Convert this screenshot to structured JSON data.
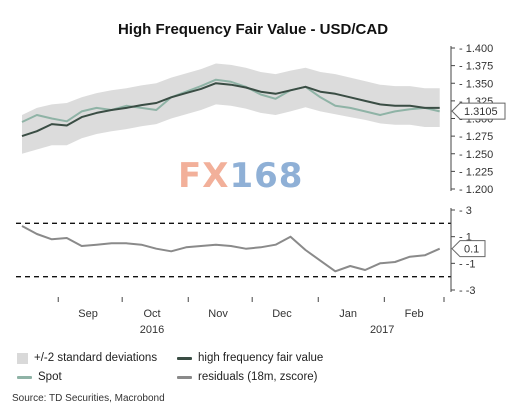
{
  "title": "High Frequency Fair Value - USD/CAD",
  "source": "Source: TD Securities, Macrobond",
  "watermark": {
    "fx": "FX",
    "num": "168"
  },
  "colors": {
    "band": "#dcdcdc",
    "fair_value": "#3a4d44",
    "spot": "#8fb3a6",
    "residuals": "#8a8a8a",
    "callout_border": "#666666"
  },
  "legend": [
    {
      "label": "+/-2 standard deviations",
      "swatch": "band"
    },
    {
      "label": "high frequency fair value",
      "swatch": "fair_value"
    },
    {
      "label": "Spot",
      "swatch": "spot"
    },
    {
      "label": "residuals (18m, zscore)",
      "swatch": "residuals"
    }
  ],
  "chart_data": [
    {
      "type": "line",
      "title": "High Frequency Fair Value - USD/CAD",
      "x_domain": [
        "2016-08-15",
        "2017-03-01"
      ],
      "ylim": [
        1.2,
        1.4
      ],
      "y_ticks": [
        "1.400",
        "1.375",
        "1.350",
        "1.325",
        "1.300",
        "1.275",
        "1.250",
        "1.225",
        "1.200"
      ],
      "y_axis_side": "right",
      "x": [
        "2016-08-15",
        "2016-08-22",
        "2016-08-29",
        "2016-09-05",
        "2016-09-12",
        "2016-09-19",
        "2016-09-26",
        "2016-10-03",
        "2016-10-10",
        "2016-10-17",
        "2016-10-24",
        "2016-10-31",
        "2016-11-07",
        "2016-11-14",
        "2016-11-21",
        "2016-11-28",
        "2016-12-05",
        "2016-12-12",
        "2016-12-19",
        "2016-12-26",
        "2017-01-02",
        "2017-01-09",
        "2017-01-16",
        "2017-01-23",
        "2017-01-30",
        "2017-02-06",
        "2017-02-13",
        "2017-02-20",
        "2017-02-27"
      ],
      "series": [
        {
          "name": "high frequency fair value",
          "values": [
            1.275,
            1.282,
            1.292,
            1.29,
            1.302,
            1.308,
            1.312,
            1.315,
            1.319,
            1.322,
            1.33,
            1.336,
            1.342,
            1.35,
            1.348,
            1.344,
            1.338,
            1.335,
            1.34,
            1.345,
            1.338,
            1.335,
            1.33,
            1.325,
            1.32,
            1.318,
            1.318,
            1.315,
            1.315
          ]
        },
        {
          "name": "Spot",
          "values": [
            1.295,
            1.305,
            1.3,
            1.296,
            1.31,
            1.315,
            1.312,
            1.318,
            1.315,
            1.312,
            1.33,
            1.338,
            1.346,
            1.355,
            1.352,
            1.345,
            1.334,
            1.328,
            1.34,
            1.345,
            1.33,
            1.318,
            1.315,
            1.31,
            1.305,
            1.31,
            1.313,
            1.315,
            1.31
          ]
        }
      ],
      "band": {
        "name": "+/-2 standard deviations",
        "upper": [
          1.305,
          1.315,
          1.32,
          1.322,
          1.33,
          1.336,
          1.34,
          1.343,
          1.347,
          1.35,
          1.358,
          1.364,
          1.37,
          1.378,
          1.376,
          1.372,
          1.366,
          1.363,
          1.368,
          1.372,
          1.366,
          1.363,
          1.358,
          1.353,
          1.348,
          1.346,
          1.346,
          1.343,
          1.343
        ],
        "lower": [
          1.25,
          1.256,
          1.262,
          1.262,
          1.272,
          1.278,
          1.282,
          1.285,
          1.289,
          1.292,
          1.3,
          1.306,
          1.312,
          1.32,
          1.318,
          1.314,
          1.308,
          1.305,
          1.31,
          1.316,
          1.31,
          1.306,
          1.302,
          1.298,
          1.293,
          1.291,
          1.291,
          1.288,
          1.288
        ]
      },
      "callout": {
        "label": "1.3105",
        "value": 1.3105
      }
    },
    {
      "type": "line",
      "ylim": [
        -3,
        3
      ],
      "y_ticks": [
        "3",
        "1",
        "-1",
        "-3"
      ],
      "y_axis_side": "right",
      "reference_lines": [
        2,
        -2
      ],
      "x": [
        "2016-08-15",
        "2016-08-22",
        "2016-08-29",
        "2016-09-05",
        "2016-09-12",
        "2016-09-19",
        "2016-09-26",
        "2016-10-03",
        "2016-10-10",
        "2016-10-17",
        "2016-10-24",
        "2016-10-31",
        "2016-11-07",
        "2016-11-14",
        "2016-11-21",
        "2016-11-28",
        "2016-12-05",
        "2016-12-12",
        "2016-12-19",
        "2016-12-26",
        "2017-01-02",
        "2017-01-09",
        "2017-01-16",
        "2017-01-23",
        "2017-01-30",
        "2017-02-06",
        "2017-02-13",
        "2017-02-20",
        "2017-02-27"
      ],
      "series": [
        {
          "name": "residuals (18m, zscore)",
          "values": [
            1.8,
            1.2,
            0.8,
            0.9,
            0.3,
            0.4,
            0.5,
            0.5,
            0.4,
            0.1,
            -0.1,
            0.2,
            0.3,
            0.4,
            0.3,
            0.1,
            0.2,
            0.4,
            1.0,
            0.0,
            -0.8,
            -1.6,
            -1.2,
            -1.5,
            -1.0,
            -0.9,
            -0.5,
            -0.4,
            0.1
          ]
        }
      ],
      "callout": {
        "label": "0.1",
        "value": 0.1
      }
    }
  ],
  "x_axis": {
    "months": [
      "Sep",
      "Oct",
      "Nov",
      "Dec",
      "Jan",
      "Feb"
    ],
    "month_dates": [
      "2016-09-15",
      "2016-10-15",
      "2016-11-15",
      "2016-12-15",
      "2017-01-15",
      "2017-02-15"
    ],
    "years": [
      {
        "label": "2016",
        "date": "2016-10-15"
      },
      {
        "label": "2017",
        "date": "2017-01-31"
      }
    ]
  }
}
